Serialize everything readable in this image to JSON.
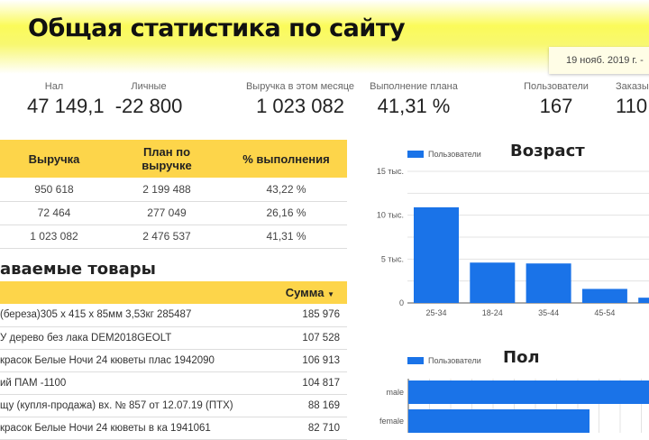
{
  "header": {
    "title": "Общая статистика по сайту",
    "date_range": "19 нояб. 2019 г. -"
  },
  "kpis": [
    {
      "label": "Нал",
      "value": "47 149,1"
    },
    {
      "label": "Личные",
      "value": "-22 800"
    },
    {
      "label": "Выручка в этом месяце",
      "value": "1 023 082"
    },
    {
      "label": "Выполнение плана",
      "value": "41,31 %"
    },
    {
      "label": "Пользователи",
      "value": "167"
    },
    {
      "label": "Заказы",
      "value": "110"
    }
  ],
  "plan_table": {
    "columns": [
      "Выручка",
      "План по выручке",
      "% выполнения"
    ],
    "rows": [
      [
        "950 618",
        "2 199 488",
        "43,22 %"
      ],
      [
        "72 464",
        "277 049",
        "26,16 %"
      ],
      [
        "1 023 082",
        "2 476 537",
        "41,31 %"
      ]
    ]
  },
  "products": {
    "title": "аваемые товары",
    "sum_header": "Сумма",
    "sort_icon": "caret-down-icon",
    "rows": [
      {
        "name": "(береза)305 x 415 x 85мм 3,53кг 285487",
        "sum": "185 976"
      },
      {
        "name": "У дерево без лака DEM2018GEOLT",
        "sum": "107 528"
      },
      {
        "name": "красок Белые Ночи 24 кюветы плас 1942090",
        "sum": "106 913"
      },
      {
        "name": "ий ПАМ -1100",
        "sum": "104 817"
      },
      {
        "name": "щу (купля-продажа) вх. № 857 от 12.07.19 (ПТХ)",
        "sum": "88 169"
      },
      {
        "name": "красок Белые Ночи 24 кюветы в ка 1941061",
        "sum": "82 710"
      }
    ]
  },
  "chart_data": [
    {
      "type": "bar",
      "title": "Возраст",
      "legend": "Пользователи",
      "legend_position": "top-left",
      "color": "#1a73e8",
      "grid": true,
      "categories": [
        "25-34",
        "18-24",
        "35-44",
        "45-54",
        ""
      ],
      "values": [
        10900,
        4600,
        4500,
        1600,
        600
      ],
      "ylim": [
        0,
        15000
      ],
      "yticks": [
        {
          "v": 0,
          "label": "0"
        },
        {
          "v": 5000,
          "label": "5 тыс."
        },
        {
          "v": 10000,
          "label": "10 тыс."
        },
        {
          "v": 15000,
          "label": "15 тыс."
        }
      ]
    },
    {
      "type": "bar",
      "orientation": "horizontal",
      "title": "Пол",
      "legend": "Пользователи",
      "legend_position": "top-left",
      "color": "#1a73e8",
      "grid": true,
      "categories": [
        "male",
        "female"
      ],
      "values": [
        100,
        75
      ]
    }
  ]
}
